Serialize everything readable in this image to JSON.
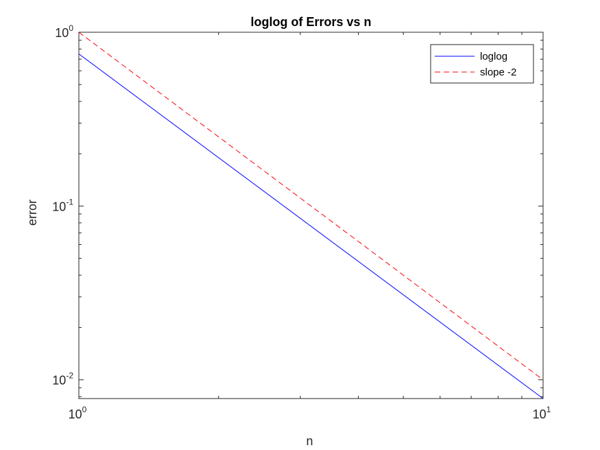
{
  "chart_data": {
    "type": "line",
    "title": "loglog of Errors vs n",
    "xlabel": "n",
    "ylabel": "error",
    "xscale": "log",
    "yscale": "log",
    "xlim": [
      1,
      10
    ],
    "ylim": [
      0.0078,
      1
    ],
    "grid": false,
    "legend_position": "top-right",
    "x_ticks": [
      {
        "value": 1,
        "base": "10",
        "exp": "0"
      },
      {
        "value": 10,
        "base": "10",
        "exp": "1"
      }
    ],
    "y_ticks": [
      {
        "value": 0.01,
        "base": "10",
        "exp": "-2"
      },
      {
        "value": 0.1,
        "base": "10",
        "exp": "-1"
      },
      {
        "value": 1,
        "base": "10",
        "exp": "0"
      }
    ],
    "series": [
      {
        "name": "loglog",
        "color": "#0000ff",
        "dash": "solid",
        "x": [
          1,
          10
        ],
        "y": [
          0.75,
          0.0078
        ]
      },
      {
        "name": "slope -2",
        "color": "#ff0000",
        "dash": "dashed",
        "x": [
          1,
          10
        ],
        "y": [
          1,
          0.01
        ]
      }
    ]
  }
}
